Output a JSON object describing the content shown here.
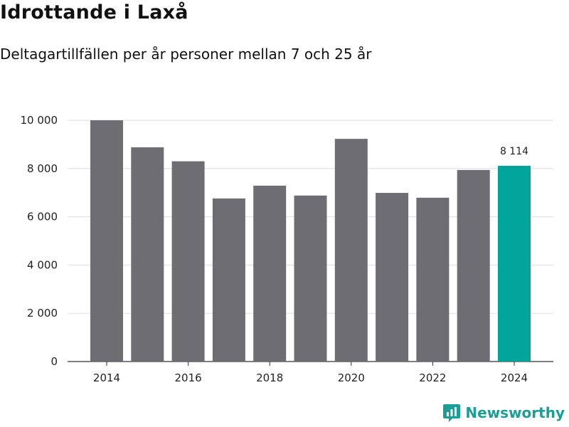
{
  "header": {
    "title": "Idrottande i Laxå",
    "subtitle": "Deltagartillfällen per år personer mellan 7 och 25 år"
  },
  "brand": {
    "name": "Newsworthy",
    "icon": "newsworthy-logo-icon",
    "color": "#1a9e95"
  },
  "colors": {
    "bar": "#6e6d72",
    "highlight": "#00a49a",
    "grid": "#dddddd",
    "axis": "#333333"
  },
  "chart_data": {
    "type": "bar",
    "title": "Idrottande i Laxå",
    "subtitle": "Deltagartillfällen per år personer mellan 7 och 25 år",
    "categories": [
      "2014",
      "2015",
      "2016",
      "2017",
      "2018",
      "2019",
      "2020",
      "2021",
      "2022",
      "2023",
      "2024"
    ],
    "values": [
      10000,
      8880,
      8300,
      6760,
      7290,
      6880,
      9230,
      6990,
      6790,
      7940,
      8114
    ],
    "highlight_index": 10,
    "x_tick_labels": [
      "2014",
      "2016",
      "2018",
      "2020",
      "2022",
      "2024"
    ],
    "y_tick_labels": [
      "0",
      "2 000",
      "4 000",
      "6 000",
      "8 000",
      "10 000"
    ],
    "y_ticks": [
      0,
      2000,
      4000,
      6000,
      8000,
      10000
    ],
    "annotations": [
      {
        "category": "2024",
        "text": "8 114"
      }
    ],
    "xlabel": "",
    "ylabel": "",
    "ylim": [
      0,
      10000
    ],
    "grid": true,
    "legend": "none"
  }
}
